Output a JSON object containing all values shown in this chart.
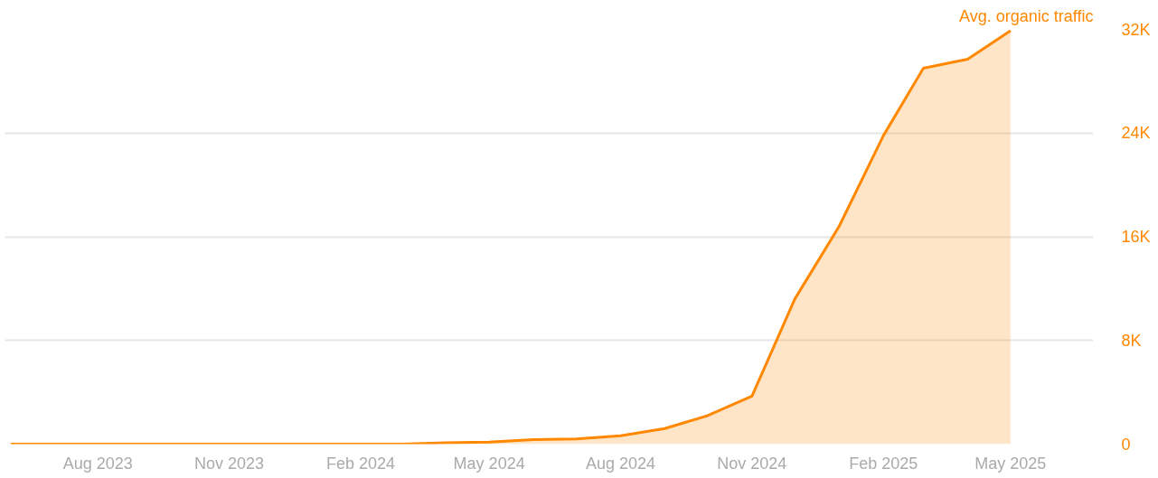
{
  "chart_data": {
    "type": "area",
    "ylabel": "Avg. organic traffic",
    "x": [
      "2023-06",
      "2023-07",
      "2023-08",
      "2023-09",
      "2023-10",
      "2023-11",
      "2023-12",
      "2024-01",
      "2024-02",
      "2024-03",
      "2024-04",
      "2024-05",
      "2024-06",
      "2024-07",
      "2024-08",
      "2024-09",
      "2024-10",
      "2024-11",
      "2024-12",
      "2025-01",
      "2025-02",
      "2025-03",
      "2025-04",
      "2025-05"
    ],
    "series": [
      {
        "color": "#ff8800",
        "values": [
          0,
          0,
          0,
          0,
          0,
          0,
          0,
          0,
          0,
          0,
          100,
          150,
          350,
          400,
          650,
          1200,
          2200,
          3700,
          11200,
          16800,
          23800,
          29000,
          29700,
          31900
        ]
      }
    ],
    "xlim": [
      "2023-05-28",
      "2025-06-28"
    ],
    "xticks": [
      {
        "value": "2023-08",
        "label": "Aug 2023"
      },
      {
        "value": "2023-11",
        "label": "Nov 2023"
      },
      {
        "value": "2024-02",
        "label": "Feb 2024"
      },
      {
        "value": "2024-05",
        "label": "May 2024"
      },
      {
        "value": "2024-08",
        "label": "Aug 2024"
      },
      {
        "value": "2024-11",
        "label": "Nov 2024"
      },
      {
        "value": "2025-02",
        "label": "Feb 2025"
      },
      {
        "value": "2025-05",
        "label": "May 2025"
      }
    ],
    "ylim": [
      0,
      32000
    ],
    "yticks": [
      {
        "value": 0,
        "label": "0"
      },
      {
        "value": 8000,
        "label": "8K"
      },
      {
        "value": 16000,
        "label": "16K"
      },
      {
        "value": 24000,
        "label": "24K"
      },
      {
        "value": 32000,
        "label": "32K"
      }
    ],
    "grid": "y"
  }
}
